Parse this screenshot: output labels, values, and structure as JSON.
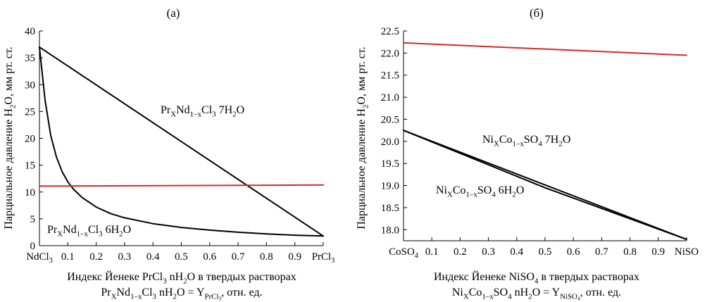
{
  "chart_data": [
    {
      "type": "line",
      "panel_label": "(a)",
      "ylabel_html": "Парциальное давление H<sub>2</sub>O, мм рт. ст.",
      "xlabel_line1_html": "Индекс Йенеке PrCl<sub>3</sub> nH<sub>2</sub>O в твердых растворах",
      "xlabel_line2_html": "Pr<sub>X</sub>Nd<sub>1–x</sub>Cl<sub>3</sub> nH<sub>2</sub>O = Y<sub>PrCl<sub>3</sub></sub>, отн. ед.",
      "xlim": [
        0,
        1
      ],
      "ylim": [
        0,
        40
      ],
      "x_tick_labels_html": [
        "NdCl<sub>3</sub>",
        "0.1",
        "0.2",
        "0.3",
        "0.4",
        "0.5",
        "0.6",
        "0.7",
        "0.8",
        "0.9",
        "PrCl<sub>3</sub>"
      ],
      "y_tick_labels": [
        "0",
        "5",
        "10",
        "15",
        "20",
        "25",
        "30",
        "35",
        "40"
      ],
      "y_ticks": [
        0,
        5,
        10,
        15,
        20,
        25,
        30,
        35,
        40
      ],
      "series": [
        {
          "name_html": "Pr<sub>X</sub>Nd<sub>1–x</sub>Cl<sub>3</sub> 7H<sub>2</sub>O",
          "color": "#000000",
          "x": [
            0,
            1
          ],
          "y": [
            37.0,
            1.8
          ]
        },
        {
          "name_html": "Pr<sub>X</sub>Nd<sub>1–x</sub>Cl<sub>3</sub> 6H<sub>2</sub>O",
          "color": "#000000",
          "x": [
            0,
            0.02,
            0.04,
            0.06,
            0.08,
            0.1,
            0.12,
            0.15,
            0.2,
            0.25,
            0.3,
            0.4,
            0.5,
            0.6,
            0.7,
            0.8,
            0.9,
            1
          ],
          "y": [
            37.0,
            27.0,
            20.5,
            16.5,
            13.8,
            11.9,
            10.5,
            9.0,
            7.2,
            6.0,
            5.2,
            4.1,
            3.4,
            2.9,
            2.5,
            2.2,
            1.95,
            1.8
          ]
        },
        {
          "name_html": "",
          "color": "#d42a2a",
          "x": [
            0,
            1
          ],
          "y": [
            11.1,
            11.3
          ]
        }
      ]
    },
    {
      "type": "line",
      "panel_label": "(б)",
      "ylabel_html": "Парциальное давление H<sub>2</sub>O, мм рт. ст.",
      "xlabel_line1_html": "Индекс Йенеке NiSO<sub>4</sub> в твердых растворах",
      "xlabel_line2_html": "Ni<sub>X</sub>Co<sub>1–x</sub>SO<sub>4</sub> nH<sub>2</sub>O = Y<sub>NiSO<sub>4</sub></sub>, отн. ед.",
      "xlim": [
        0,
        1
      ],
      "ylim": [
        17.75,
        22.5
      ],
      "x_tick_labels_html": [
        "CoSO<sub>4</sub>",
        "0.1",
        "0.2",
        "0.3",
        "0.4",
        "0.5",
        "0.6",
        "0.7",
        "0.8",
        "0.9",
        "NiSO"
      ],
      "y_tick_labels": [
        "18.0",
        "18.5",
        "19.0",
        "19.5",
        "20.0",
        "20.5",
        "21.0",
        "21.5",
        "22.0",
        "22.5"
      ],
      "y_ticks": [
        18.0,
        18.5,
        19.0,
        19.5,
        20.0,
        20.5,
        21.0,
        21.5,
        22.0,
        22.5
      ],
      "series": [
        {
          "name_html": "Ni<sub>X</sub>Co<sub>1–x</sub>SO<sub>4</sub> 7H<sub>2</sub>O",
          "color": "#000000",
          "x": [
            0,
            1
          ],
          "y": [
            20.25,
            17.78
          ]
        },
        {
          "name_html": "Ni<sub>X</sub>Co<sub>1–x</sub>SO<sub>4</sub> 6H<sub>2</sub>O",
          "color": "#000000",
          "x": [
            0,
            0.5,
            1
          ],
          "y": [
            20.25,
            18.95,
            17.78
          ]
        },
        {
          "name_html": "",
          "color": "#d42a2a",
          "x": [
            0,
            1
          ],
          "y": [
            22.23,
            21.95
          ]
        }
      ]
    }
  ]
}
